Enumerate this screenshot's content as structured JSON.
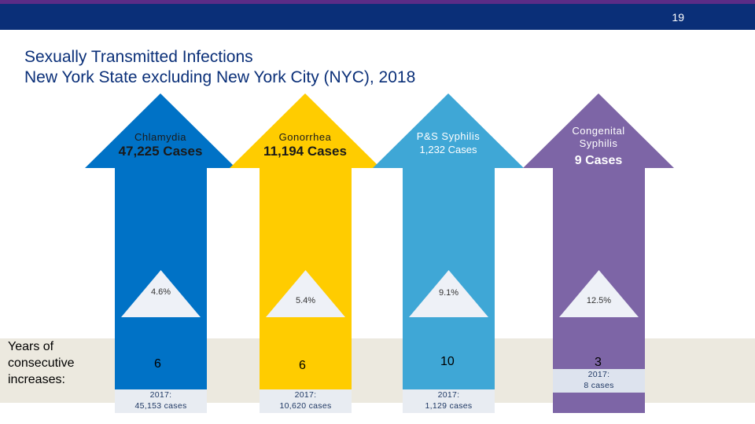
{
  "slide": {
    "number": "19"
  },
  "title": {
    "line1": "Sexually Transmitted Infections",
    "line2": "New York State excluding New York City (NYC), 2018"
  },
  "years_label": "Years of consecutive increases:",
  "diseases": [
    {
      "name": "Chlamydia",
      "cases": "47,225 Cases",
      "pct_increase": "4.6%",
      "prev_year": "2017:",
      "prev_cases": "45,153 cases",
      "years_increase": "6",
      "color": "#0072c6"
    },
    {
      "name": "Gonorrhea",
      "cases": "11,194 Cases",
      "pct_increase": "5.4%",
      "prev_year": "2017:",
      "prev_cases": "10,620 cases",
      "years_increase": "6",
      "color": "#ffcc00"
    },
    {
      "name": "P&S Syphilis",
      "cases": "1,232 Cases",
      "pct_increase": "9.1%",
      "prev_year": "2017:",
      "prev_cases": "1,129 cases",
      "years_increase": "10",
      "color": "#3fa7d6"
    },
    {
      "name_line1": "Congenital",
      "name_line2": "Syphilis",
      "cases": "9 Cases",
      "pct_increase": "12.5%",
      "prev_year": "2017:",
      "prev_cases": "8 cases",
      "years_increase": "3",
      "color": "#7d65a6"
    }
  ]
}
